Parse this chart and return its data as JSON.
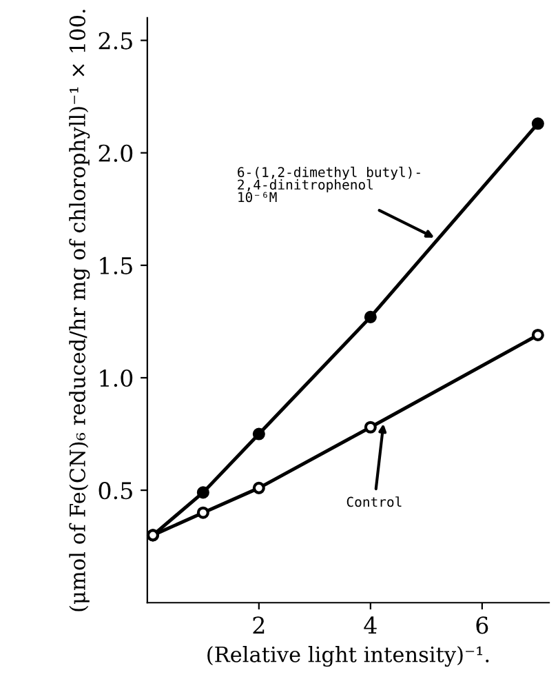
{
  "chart_data": {
    "type": "line",
    "xlabel": "(Relative light intensity)⁻¹.",
    "ylabel": "(μmol of Fe(CN)₆ reduced/hr mg of chlorophyll)⁻¹ × 100.",
    "series": [
      {
        "name": "6-(1,2-dimethyl butyl)-\n2,4-dinitrophenol\n10⁻⁶M",
        "color": "#000000",
        "marker": "circle",
        "x": [
          0.1,
          1,
          2,
          4,
          7
        ],
        "values": [
          0.3,
          0.49,
          0.75,
          1.27,
          2.13
        ]
      },
      {
        "name": "Control",
        "color": "#000000",
        "marker": "circle",
        "x": [
          0.1,
          1,
          2,
          4,
          7
        ],
        "values": [
          0.3,
          0.4,
          0.51,
          0.78,
          1.19
        ]
      }
    ],
    "xlim": [
      0,
      7.2
    ],
    "ylim": [
      0,
      2.6
    ],
    "xticks": [
      2,
      4,
      6
    ],
    "yticks": [
      0.5,
      {
        "value": 1,
        "label": "1.0"
      },
      1.5,
      {
        "value": 2,
        "label": "2.0"
      },
      2.5
    ],
    "grid": false,
    "legend": false,
    "line_style": "solid"
  }
}
